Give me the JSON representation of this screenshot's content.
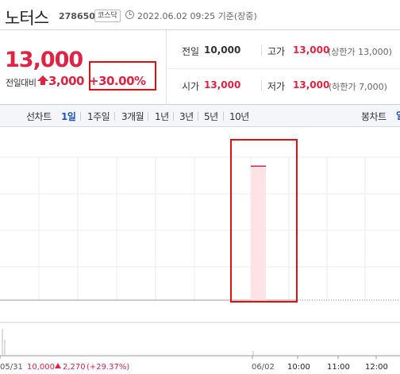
{
  "header": {
    "stock_name": "노터스",
    "stock_code": "278650",
    "market": "코스닥",
    "timestamp": "2022.06.02 09:25 기준(장중)"
  },
  "price": {
    "current": "13,000",
    "change_label": "전일대비",
    "change_amount": "3,000",
    "change_percent": "+30.00%",
    "direction": "up"
  },
  "info": {
    "prev_close_label": "전일",
    "prev_close_value": "10,000",
    "high_label": "고가",
    "high_value": "13,000",
    "high_sub": "(상한가 13,000)",
    "open_label": "시가",
    "open_value": "13,000",
    "low_label": "저가",
    "low_value": "13,000",
    "low_sub": "(하한가 7,000)"
  },
  "toolbar": {
    "line_chart_label": "선차트",
    "periods": [
      "1일",
      "1주일",
      "3개월",
      "1년",
      "3년",
      "5년",
      "10년"
    ],
    "active_period": "1일",
    "candle_chart_label": "봉차트"
  },
  "colors": {
    "up": "#e12343",
    "active_tab": "#1d57c8",
    "highlight_box": "#e01010"
  },
  "chart_data": {
    "type": "area",
    "x_tick_labels": [
      "05/31",
      "06/02",
      "10:00",
      "11:00",
      "12:00"
    ],
    "previous_day_note": {
      "price": "10,000",
      "change": "2,270",
      "percent": "(+29.37%)"
    },
    "series": [
      {
        "values": [
          13000
        ]
      }
    ],
    "ylim": [
      7000,
      13400
    ],
    "grid": true
  }
}
